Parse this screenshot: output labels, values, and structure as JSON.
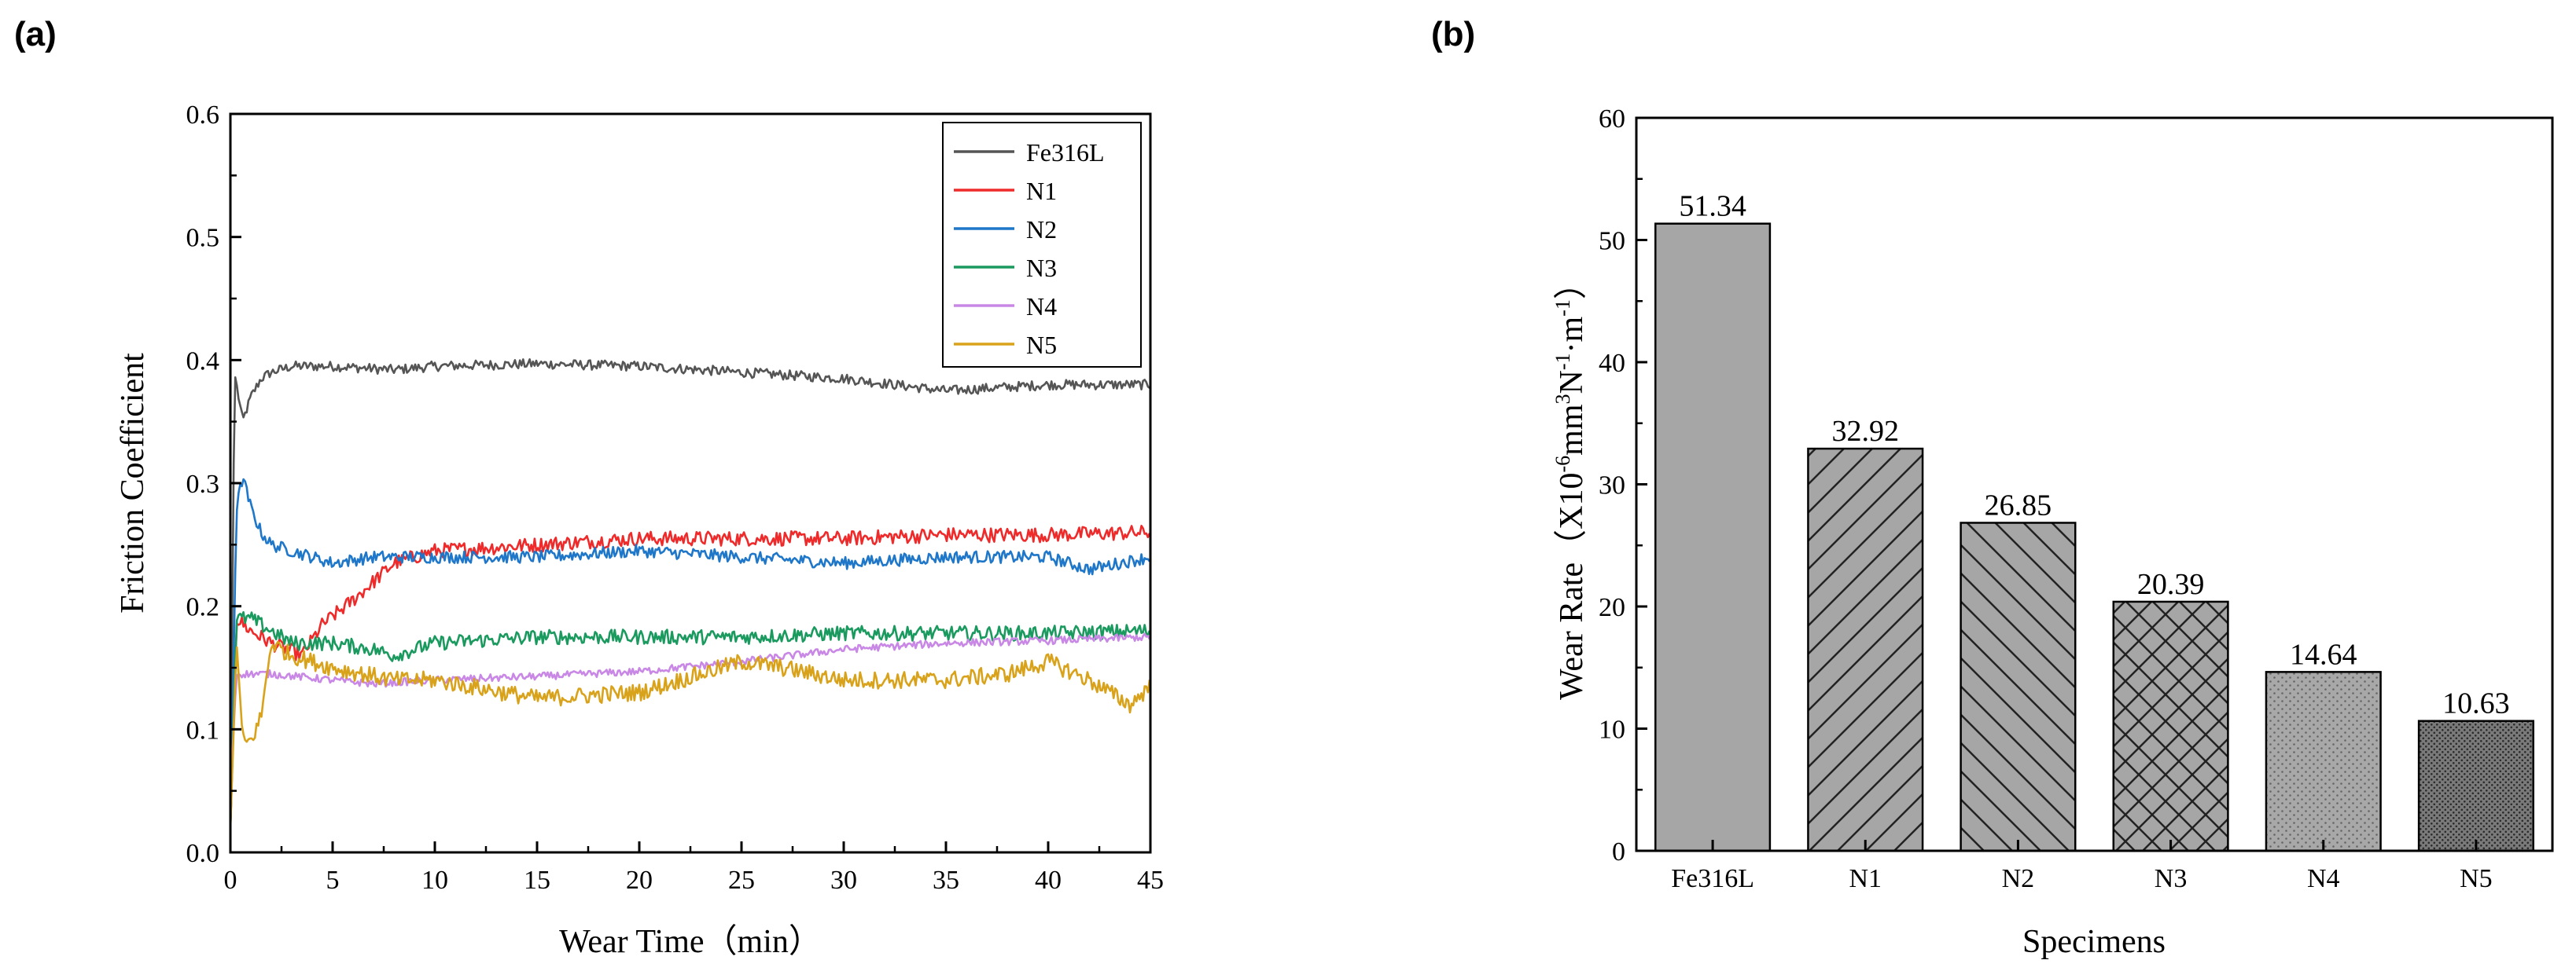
{
  "chart_data": [
    {
      "panel_label": "(a)",
      "type": "line",
      "xlabel": "Wear Time（min）",
      "ylabel": "Friction Coefficient",
      "xlim": [
        0,
        45
      ],
      "ylim": [
        0,
        0.6
      ],
      "xticks": [
        "0",
        "5",
        "10",
        "15",
        "20",
        "25",
        "30",
        "35",
        "40",
        "45"
      ],
      "yticks": [
        "0.0",
        "0.1",
        "0.2",
        "0.3",
        "0.4",
        "0.5",
        "0.6"
      ],
      "legend_position": "top-right",
      "series": [
        {
          "name": "Fe316L",
          "color": "#555555",
          "points": [
            [
              0,
              0.02
            ],
            [
              0.2,
              0.39
            ],
            [
              0.4,
              0.37
            ],
            [
              0.6,
              0.35
            ],
            [
              1,
              0.37
            ],
            [
              1.5,
              0.385
            ],
            [
              2,
              0.39
            ],
            [
              3,
              0.395
            ],
            [
              5,
              0.395
            ],
            [
              8,
              0.392
            ],
            [
              10,
              0.395
            ],
            [
              15,
              0.397
            ],
            [
              20,
              0.395
            ],
            [
              25,
              0.39
            ],
            [
              30,
              0.385
            ],
            [
              35,
              0.375
            ],
            [
              40,
              0.38
            ],
            [
              45,
              0.38
            ]
          ]
        },
        {
          "name": "N1",
          "color": "#ee2a2a",
          "points": [
            [
              0,
              0.02
            ],
            [
              0.3,
              0.19
            ],
            [
              1,
              0.18
            ],
            [
              2,
              0.17
            ],
            [
              3.5,
              0.16
            ],
            [
              4.5,
              0.185
            ],
            [
              6,
              0.205
            ],
            [
              7,
              0.22
            ],
            [
              8,
              0.235
            ],
            [
              10,
              0.245
            ],
            [
              15,
              0.25
            ],
            [
              20,
              0.255
            ],
            [
              25,
              0.255
            ],
            [
              30,
              0.255
            ],
            [
              35,
              0.258
            ],
            [
              40,
              0.258
            ],
            [
              45,
              0.26
            ]
          ]
        },
        {
          "name": "N2",
          "color": "#1f77c9",
          "points": [
            [
              0,
              0.02
            ],
            [
              0.3,
              0.28
            ],
            [
              0.6,
              0.305
            ],
            [
              1,
              0.28
            ],
            [
              1.5,
              0.26
            ],
            [
              2,
              0.25
            ],
            [
              3,
              0.245
            ],
            [
              4,
              0.24
            ],
            [
              5,
              0.235
            ],
            [
              7,
              0.24
            ],
            [
              10,
              0.24
            ],
            [
              15,
              0.24
            ],
            [
              20,
              0.245
            ],
            [
              25,
              0.24
            ],
            [
              30,
              0.235
            ],
            [
              35,
              0.24
            ],
            [
              40,
              0.24
            ],
            [
              42,
              0.23
            ],
            [
              45,
              0.24
            ]
          ]
        },
        {
          "name": "N3",
          "color": "#1a9a5e",
          "points": [
            [
              0,
              0.02
            ],
            [
              0.3,
              0.19
            ],
            [
              1,
              0.19
            ],
            [
              2,
              0.18
            ],
            [
              3,
              0.17
            ],
            [
              5,
              0.17
            ],
            [
              7,
              0.165
            ],
            [
              8,
              0.16
            ],
            [
              10,
              0.17
            ],
            [
              15,
              0.175
            ],
            [
              20,
              0.175
            ],
            [
              25,
              0.175
            ],
            [
              30,
              0.178
            ],
            [
              35,
              0.178
            ],
            [
              40,
              0.178
            ],
            [
              45,
              0.18
            ]
          ]
        },
        {
          "name": "N4",
          "color": "#c987e6",
          "points": [
            [
              0,
              0.05
            ],
            [
              0.3,
              0.145
            ],
            [
              2,
              0.145
            ],
            [
              5,
              0.14
            ],
            [
              7,
              0.137
            ],
            [
              10,
              0.14
            ],
            [
              15,
              0.143
            ],
            [
              20,
              0.147
            ],
            [
              25,
              0.155
            ],
            [
              30,
              0.165
            ],
            [
              35,
              0.17
            ],
            [
              40,
              0.172
            ],
            [
              45,
              0.175
            ]
          ]
        },
        {
          "name": "N5",
          "color": "#d9a21b",
          "points": [
            [
              0,
              0.02
            ],
            [
              0.3,
              0.17
            ],
            [
              0.6,
              0.09
            ],
            [
              1,
              0.09
            ],
            [
              1.5,
              0.11
            ],
            [
              2,
              0.17
            ],
            [
              3,
              0.16
            ],
            [
              5,
              0.15
            ],
            [
              8,
              0.14
            ],
            [
              10,
              0.14
            ],
            [
              15,
              0.125
            ],
            [
              20,
              0.13
            ],
            [
              25,
              0.155
            ],
            [
              27,
              0.15
            ],
            [
              30,
              0.14
            ],
            [
              35,
              0.14
            ],
            [
              38,
              0.145
            ],
            [
              40,
              0.155
            ],
            [
              42,
              0.14
            ],
            [
              44,
              0.12
            ],
            [
              45,
              0.135
            ]
          ]
        }
      ]
    },
    {
      "panel_label": "(b)",
      "type": "bar",
      "xlabel": "Specimens",
      "ylabel_main": "Wear Rate（X10",
      "ylabel_exp1": "-6",
      "ylabel_mid1": "mm",
      "ylabel_exp2": "3",
      "ylabel_mid2": "N",
      "ylabel_exp3": "-1",
      "ylabel_mid3": "·m",
      "ylabel_exp4": "-1",
      "ylabel_end": "）",
      "ylim": [
        0,
        60
      ],
      "yticks": [
        "0",
        "10",
        "20",
        "30",
        "40",
        "50",
        "60"
      ],
      "categories": [
        "Fe316L",
        "N1",
        "N2",
        "N3",
        "N4",
        "N5"
      ],
      "values": [
        51.34,
        32.92,
        26.85,
        20.39,
        14.64,
        10.63
      ],
      "value_labels": [
        "51.34",
        "32.92",
        "26.85",
        "20.39",
        "14.64",
        "10.63"
      ],
      "patterns": [
        "solid",
        "diag-right",
        "diag-left",
        "crosshatch",
        "dots",
        "dense-dots"
      ]
    }
  ]
}
